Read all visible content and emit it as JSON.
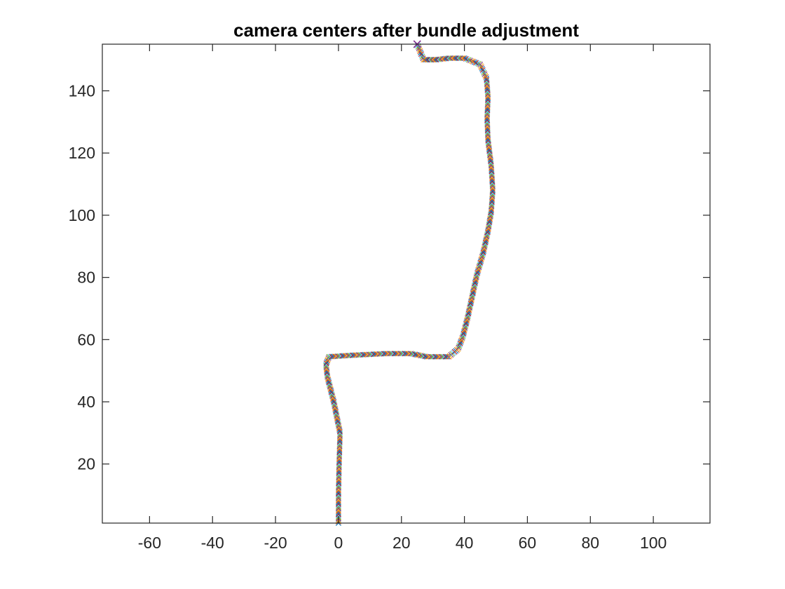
{
  "chart_data": {
    "type": "scatter",
    "title": "camera centers after bundle adjustment",
    "xlabel": "",
    "ylabel": "",
    "xlim": [
      -75,
      118
    ],
    "ylim": [
      1,
      155
    ],
    "xticks": [
      -60,
      -40,
      -20,
      0,
      20,
      40,
      60,
      80,
      100
    ],
    "xtick_labels": [
      "-60",
      "-40",
      "-20",
      "0",
      "20",
      "40",
      "60",
      "80",
      "100"
    ],
    "yticks": [
      20,
      40,
      60,
      80,
      100,
      120,
      140
    ],
    "ytick_labels": [
      "20",
      "40",
      "60",
      "80",
      "100",
      "120",
      "140"
    ],
    "grid": false,
    "legend": "none",
    "marker": "x",
    "marker_colors": [
      "#0072BD",
      "#D95319",
      "#EDB120",
      "#7E2F8E",
      "#77AC30",
      "#4DBEEE",
      "#A2142F"
    ],
    "series": [
      {
        "x": [
          0,
          0,
          0.2,
          0.5,
          -0.5,
          -1.5,
          -2.5,
          -3.5,
          -4,
          -3,
          5,
          15,
          23,
          28,
          35,
          38,
          39.5,
          41,
          42.5,
          44,
          46,
          47.5,
          48.5,
          49,
          48.5,
          47.5,
          47.2,
          47.5,
          47,
          45,
          40,
          35,
          31,
          29,
          27,
          25
        ],
        "y": [
          1,
          10,
          20,
          30,
          35,
          40,
          44,
          48,
          52,
          54.5,
          55,
          55.5,
          55.5,
          54.5,
          54.5,
          57,
          61,
          67,
          74,
          81,
          88,
          95,
          101,
          108,
          116,
          124,
          131,
          138,
          144,
          148.5,
          150.5,
          150.5,
          150,
          150,
          150,
          155
        ]
      }
    ]
  }
}
